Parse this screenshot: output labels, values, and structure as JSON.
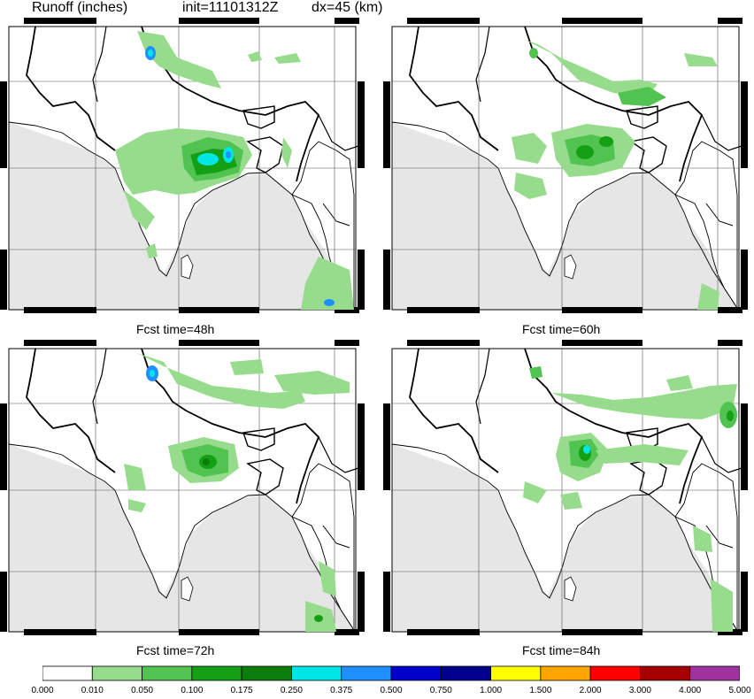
{
  "header": {
    "variable": "Runoff (inches)",
    "init": "init=11101312Z",
    "dx": "dx=45 (km)"
  },
  "panels": [
    {
      "id": "p1",
      "time_label": "Fcst time=48h"
    },
    {
      "id": "p2",
      "time_label": "Fcst time=60h"
    },
    {
      "id": "p3",
      "time_label": "Fcst time=72h"
    },
    {
      "id": "p4",
      "time_label": "Fcst time=84h"
    }
  ],
  "legend": {
    "levels": [
      "0.000",
      "0.010",
      "0.050",
      "0.100",
      "0.175",
      "0.250",
      "0.375",
      "0.500",
      "0.750",
      "1.000",
      "1.500",
      "2.000",
      "3.000",
      "4.000",
      "5.000"
    ],
    "colors": [
      "#ffffff",
      "#96dc8c",
      "#50c350",
      "#14a014",
      "#0a7d0a",
      "#00e6e6",
      "#1e90ff",
      "#0000c8",
      "#00008c",
      "#ffff00",
      "#ffa500",
      "#ff0000",
      "#a50000",
      "#a032a0"
    ]
  },
  "map_style": {
    "land": "#ffffff",
    "ocean": "#e6e6e6",
    "border": "#000000",
    "grid": "#555555"
  }
}
